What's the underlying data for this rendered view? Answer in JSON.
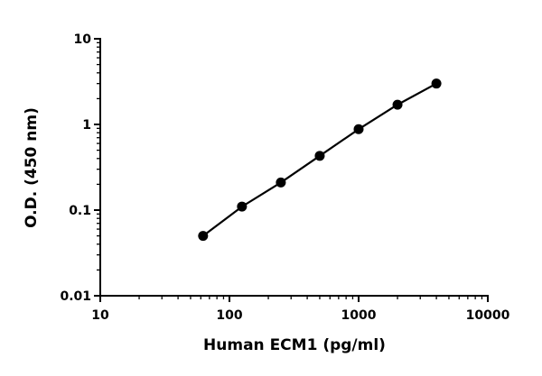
{
  "chart_data": {
    "type": "line",
    "title": "",
    "xlabel": "Human ECM1 (pg/ml)",
    "ylabel": "O.D. (450 nm)",
    "x_scale": "log",
    "y_scale": "log",
    "xlim": [
      10,
      10000
    ],
    "ylim": [
      0.01,
      10
    ],
    "x_ticks": [
      "10",
      "100",
      "1000",
      "10000"
    ],
    "y_ticks": [
      "0.01",
      "0.1",
      "1",
      "10"
    ],
    "grid": false,
    "markers": "filled-circle",
    "color": "#000000",
    "series": [
      {
        "x": [
          62.5,
          125,
          250,
          500,
          1000,
          2000,
          4000
        ],
        "y": [
          0.05,
          0.11,
          0.21,
          0.43,
          0.88,
          1.7,
          3.0
        ]
      }
    ]
  }
}
